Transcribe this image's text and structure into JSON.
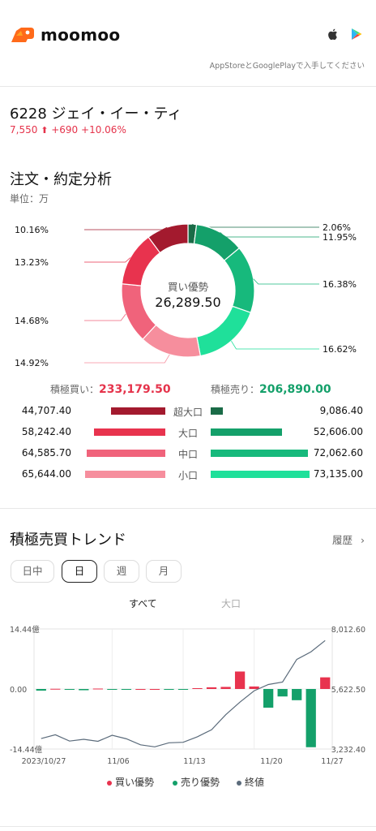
{
  "header": {
    "brand": "moomoo",
    "store_note": "AppStoreとGooglePlayで入手してください"
  },
  "stock": {
    "code_name": "6228  ジェイ・イー・ティ",
    "price": "7,550",
    "change": "+690",
    "change_pct": "+10.06%"
  },
  "analysis": {
    "title": "注文・約定分析",
    "unit": "単位：万",
    "center_label": "買い優勢",
    "center_value": "26,289.50",
    "slices": [
      {
        "label": "2.06%",
        "value": 2.06,
        "color": "#1a6b47"
      },
      {
        "label": "11.95%",
        "value": 11.95,
        "color": "#14a06a"
      },
      {
        "label": "16.38%",
        "value": 16.38,
        "color": "#17b97c"
      },
      {
        "label": "16.62%",
        "value": 16.62,
        "color": "#1fe09a"
      },
      {
        "label": "14.92%",
        "value": 14.92,
        "color": "#f68e9d"
      },
      {
        "label": "14.68%",
        "value": 14.68,
        "color": "#f0637b"
      },
      {
        "label": "13.23%",
        "value": 13.23,
        "color": "#e8334e"
      },
      {
        "label": "10.16%",
        "value": 10.16,
        "color": "#a31a2e"
      }
    ],
    "total_buy_label": "積極買い：",
    "total_buy_value": "233,179.50",
    "total_sell_label": "積極売り：",
    "total_sell_value": "206,890.00",
    "rows": [
      {
        "category": "超大口",
        "buy": "44,707.40",
        "sell": "9,086.40",
        "buy_frac": 0.61,
        "sell_frac": 0.124,
        "buy_color": "#a31a2e",
        "sell_color": "#1a6b47"
      },
      {
        "category": "大口",
        "buy": "58,242.40",
        "sell": "52,606.00",
        "buy_frac": 0.796,
        "sell_frac": 0.719,
        "buy_color": "#e8334e",
        "sell_color": "#14a06a"
      },
      {
        "category": "中口",
        "buy": "64,585.70",
        "sell": "72,062.60",
        "buy_frac": 0.883,
        "sell_frac": 0.985,
        "buy_color": "#f0637b",
        "sell_color": "#17b97c"
      },
      {
        "category": "小口",
        "buy": "65,644.00",
        "sell": "73,135.00",
        "buy_frac": 0.897,
        "sell_frac": 1.0,
        "buy_color": "#f68e9d",
        "sell_color": "#1fe09a"
      }
    ]
  },
  "trend": {
    "title": "積極売買トレンド",
    "history_label": "履歴",
    "tabs": [
      "日中",
      "日",
      "週",
      "月"
    ],
    "active_tab": "日",
    "sub_tabs": [
      "すべて",
      "大口"
    ],
    "legend": [
      {
        "label": "買い優勢",
        "color": "#e8334e"
      },
      {
        "label": "売り優勢",
        "color": "#14a06a"
      },
      {
        "label": "終値",
        "color": "#5b6b7b"
      }
    ]
  },
  "chart_data": {
    "type": "bar",
    "y_left_ticks": [
      "14.44億",
      "0.00",
      "-14.44億"
    ],
    "y_right_ticks": [
      "8,012.60",
      "5,622.50",
      "3,232.40"
    ],
    "x_ticks": [
      "2023/10/27",
      "11/06",
      "11/13",
      "11/20",
      "11/27"
    ],
    "ylim": [
      -14.44,
      14.44
    ],
    "y2lim": [
      3232.4,
      8012.6
    ],
    "series": [
      {
        "name": "買い優勢/売り優勢",
        "values": [
          -0.4,
          0.05,
          -0.2,
          -0.3,
          0.1,
          -0.1,
          -0.1,
          0.0,
          0.0,
          -0.2,
          -0.1,
          0.2,
          0.4,
          0.5,
          4.2,
          0.6,
          -4.5,
          -1.8,
          -2.7,
          -14.0,
          2.8
        ]
      },
      {
        "name": "終値",
        "values": [
          3650,
          3800,
          3550,
          3620,
          3540,
          3780,
          3640,
          3400,
          3320,
          3480,
          3500,
          3720,
          4000,
          4600,
          5100,
          5550,
          5800,
          5900,
          6800,
          7100,
          7550
        ]
      }
    ]
  }
}
